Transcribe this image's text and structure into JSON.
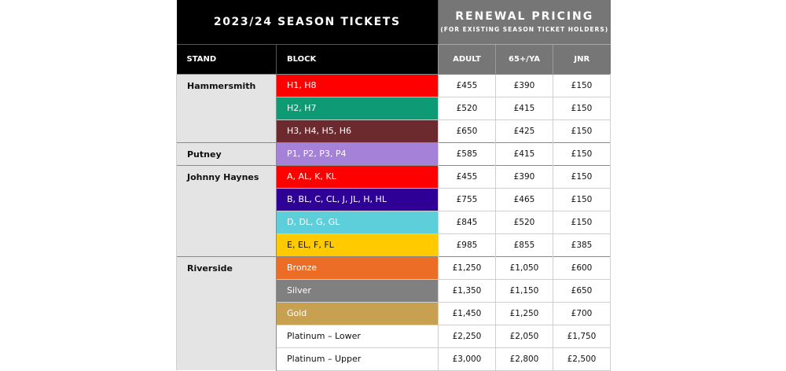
{
  "header": {
    "title": "2023/24 SEASON TICKETS",
    "renewal_title": "RENEWAL PRICING",
    "renewal_subtitle": "(FOR EXISTING SEASON TICKET HOLDERS)"
  },
  "columns": {
    "stand": "STAND",
    "block": "BLOCK",
    "adult": "ADULT",
    "senior": "65+/YA",
    "junior": "JNR"
  },
  "stands": [
    {
      "name": "Hammersmith",
      "rows": [
        {
          "block": "H1, H8",
          "color": "#fe0000",
          "light_bg": false,
          "adult": "£455",
          "senior": "£390",
          "junior": "£150"
        },
        {
          "block": "H2, H7",
          "color": "#0e9a75",
          "light_bg": false,
          "adult": "£520",
          "senior": "£415",
          "junior": "£150"
        },
        {
          "block": "H3, H4, H5, H6",
          "color": "#6d2a2e",
          "light_bg": false,
          "adult": "£650",
          "senior": "£425",
          "junior": "£150"
        }
      ]
    },
    {
      "name": "Putney",
      "rows": [
        {
          "block": "P1, P2, P3, P4",
          "color": "#a681d8",
          "light_bg": false,
          "adult": "£585",
          "senior": "£415",
          "junior": "£150"
        }
      ]
    },
    {
      "name": "Johnny Haynes",
      "rows": [
        {
          "block": "A, AL, K, KL",
          "color": "#fe0000",
          "light_bg": false,
          "adult": "£455",
          "senior": "£390",
          "junior": "£150"
        },
        {
          "block": "B, BL, C, CL, J, JL, H, HL",
          "color": "#2e0096",
          "light_bg": false,
          "adult": "£755",
          "senior": "£465",
          "junior": "£150"
        },
        {
          "block": "D, DL, G, GL",
          "color": "#5ccfdb",
          "light_bg": false,
          "adult": "£845",
          "senior": "£520",
          "junior": "£150"
        },
        {
          "block": "E, EL, F, FL",
          "color": "#ffcb00",
          "light_bg": true,
          "adult": "£985",
          "senior": "£855",
          "junior": "£385"
        }
      ]
    },
    {
      "name": "Riverside",
      "rows": [
        {
          "block": "Bronze",
          "color": "#ec6d25",
          "light_bg": false,
          "adult": "£1,250",
          "senior": "£1,050",
          "junior": "£600"
        },
        {
          "block": "Silver",
          "color": "#808080",
          "light_bg": false,
          "adult": "£1,350",
          "senior": "£1,150",
          "junior": "£650"
        },
        {
          "block": "Gold",
          "color": "#c7a14f",
          "light_bg": false,
          "adult": "£1,450",
          "senior": "£1,250",
          "junior": "£700"
        },
        {
          "block": "Platinum – Lower",
          "color": "#ffffff",
          "light_bg": true,
          "adult": "£2,250",
          "senior": "£2,050",
          "junior": "£1,750"
        },
        {
          "block": "Platinum – Upper",
          "color": "#ffffff",
          "light_bg": true,
          "adult": "£3,000",
          "senior": "£2,800",
          "junior": "£2,500"
        }
      ]
    }
  ]
}
